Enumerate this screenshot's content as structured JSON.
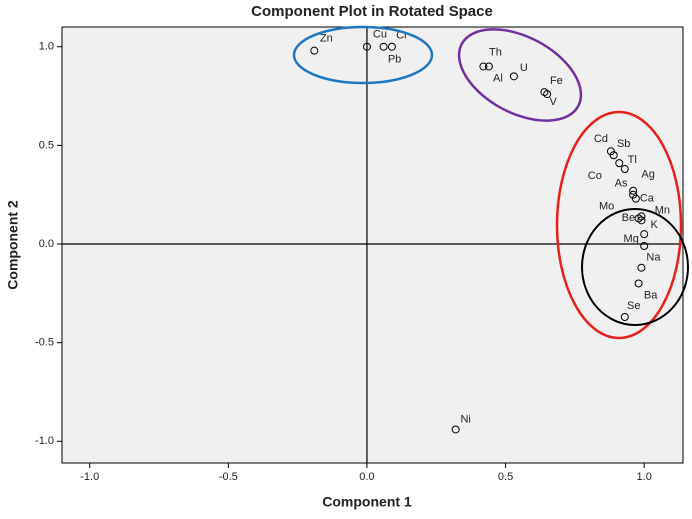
{
  "chart_data": {
    "type": "scatter",
    "title": "Component Plot in Rotated Space",
    "xlabel": "Component 1",
    "ylabel": "Component 2",
    "labels": [
      "Zn",
      "Cu",
      "Cr",
      "Pb",
      "Th",
      "Al",
      "U",
      "Fe",
      "V",
      "Cd",
      "Sb",
      "Tl",
      "Co",
      "Ag",
      "As",
      "Ca",
      "Mo",
      "Mn",
      "Be",
      "K",
      "Mg",
      "Na",
      "Ba",
      "Se",
      "Ni"
    ],
    "x": [
      -0.19,
      0.0,
      0.09,
      0.06,
      0.42,
      0.44,
      0.53,
      0.64,
      0.65,
      0.88,
      0.89,
      0.91,
      0.93,
      0.96,
      0.96,
      0.97,
      0.98,
      0.99,
      0.99,
      1.0,
      1.0,
      0.99,
      0.98,
      0.93,
      0.32
    ],
    "y": [
      0.98,
      1.0,
      1.0,
      1.0,
      0.9,
      0.9,
      0.85,
      0.77,
      0.76,
      0.47,
      0.45,
      0.41,
      0.38,
      0.27,
      0.25,
      0.23,
      0.13,
      0.14,
      0.12,
      0.05,
      -0.01,
      -0.12,
      -0.2,
      -0.37,
      -0.94
    ],
    "color": "#000000",
    "xlim": [
      -1.1,
      1.14
    ],
    "ylim": [
      -1.11,
      1.1
    ],
    "xticks": [
      {
        "value": -1.0,
        "label": "-1.0"
      },
      -0.5,
      {
        "value": 0.0,
        "label": "0.0"
      },
      0.5,
      {
        "value": 1.0,
        "label": "1.0"
      }
    ],
    "yticks": [
      {
        "value": -1.0,
        "label": "-1.0"
      },
      -0.5,
      {
        "value": 0.0,
        "label": "0.0"
      },
      0.5,
      {
        "value": 1.0,
        "label": "1.0"
      }
    ],
    "grid": false
  }
}
